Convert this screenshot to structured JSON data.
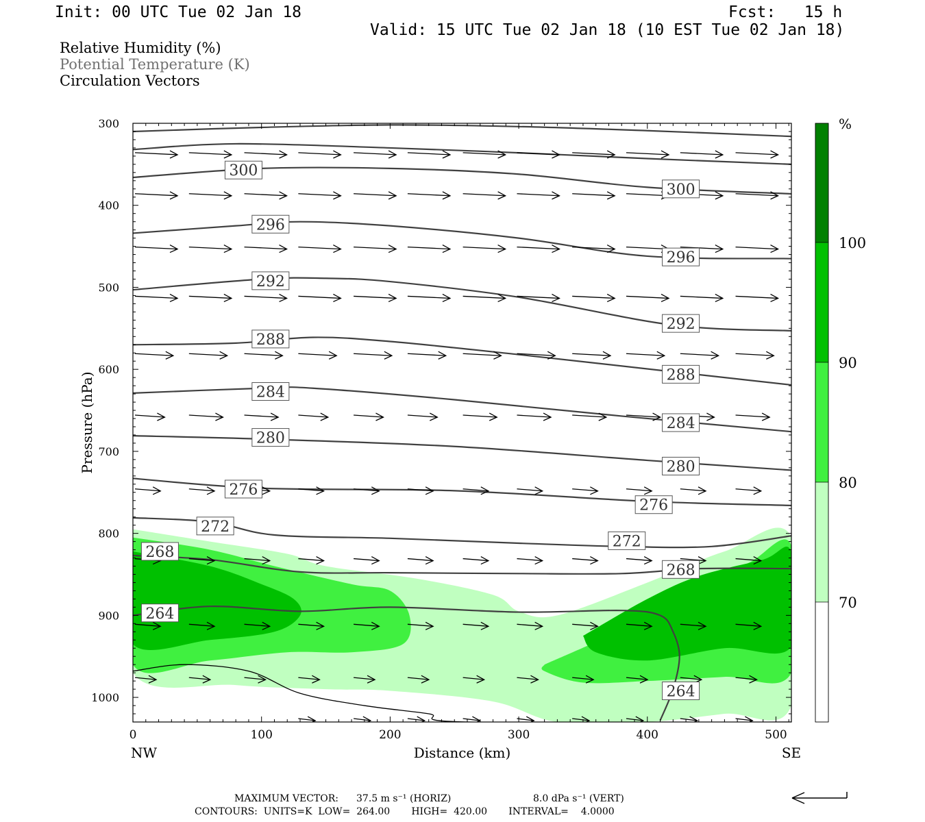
{
  "header": {
    "init": "Init: 00 UTC Tue 02 Jan 18",
    "fcst": "Fcst:   15 h",
    "valid": "Valid: 15 UTC Tue 02 Jan 18 (10 EST Tue 02 Jan 18)"
  },
  "fields": [
    {
      "label": "Relative Humidity (%)",
      "color": "#000000"
    },
    {
      "label": "Potential Temperature (K)",
      "color": "#707070"
    },
    {
      "label": "Circulation Vectors",
      "color": "#000000"
    }
  ],
  "footer": {
    "max_vector_label": "MAXIMUM VECTOR:",
    "horiz": "37.5 m s⁻¹ (HORIZ)",
    "vert": "8.0 dPa s⁻¹ (VERT)",
    "contours": "CONTOURS:  UNITS=K  LOW=  264.00       HIGH=  420.00       INTERVAL=    4.0000"
  },
  "colors": {
    "rh_70": "#c0ffc0",
    "rh_80": "#40f040",
    "rh_90": "#00c000",
    "rh_100": "#008000",
    "theta_line": "#404040",
    "axis": "#000000"
  },
  "chart_data": {
    "type": "contour",
    "xlabel": "Distance (km)",
    "ylabel": "Pressure (hPa)",
    "xlim": [
      0,
      512
    ],
    "ylim": [
      1030,
      300
    ],
    "xticks": [
      0,
      100,
      200,
      300,
      400,
      500
    ],
    "yticks": [
      300,
      400,
      500,
      600,
      700,
      800,
      900,
      1000
    ],
    "x_end_labels": {
      "left": "NW",
      "right": "SE"
    },
    "colorbar": {
      "unit": "%",
      "levels": [
        70,
        80,
        90,
        100
      ],
      "tick_labels": [
        "70",
        "80",
        "90",
        "100"
      ]
    },
    "theta_contours": [
      {
        "level": 300,
        "label": "300",
        "points": [
          [
            0,
            366
          ],
          [
            100,
            355
          ],
          [
            200,
            355
          ],
          [
            300,
            362
          ],
          [
            400,
            378
          ],
          [
            512,
            386
          ]
        ],
        "label_at": [
          [
            86,
            357
          ],
          [
            426,
            380
          ]
        ]
      },
      {
        "level": 296,
        "label": "296",
        "points": [
          [
            0,
            434
          ],
          [
            80,
            425
          ],
          [
            130,
            420
          ],
          [
            200,
            425
          ],
          [
            300,
            440
          ],
          [
            400,
            462
          ],
          [
            512,
            465
          ]
        ],
        "label_at": [
          [
            107,
            423
          ],
          [
            426,
            463
          ]
        ]
      },
      {
        "level": 292,
        "label": "292",
        "points": [
          [
            0,
            503
          ],
          [
            100,
            490
          ],
          [
            150,
            489
          ],
          [
            200,
            493
          ],
          [
            300,
            512
          ],
          [
            420,
            546
          ],
          [
            512,
            553
          ]
        ],
        "label_at": [
          [
            107,
            492
          ],
          [
            426,
            544
          ]
        ]
      },
      {
        "level": 288,
        "label": "288",
        "points": [
          [
            0,
            570
          ],
          [
            80,
            568
          ],
          [
            140,
            561
          ],
          [
            200,
            566
          ],
          [
            300,
            582
          ],
          [
            420,
            603
          ],
          [
            512,
            619
          ]
        ],
        "label_at": [
          [
            107,
            563
          ],
          [
            426,
            606
          ]
        ]
      },
      {
        "level": 284,
        "label": "284",
        "points": [
          [
            0,
            629
          ],
          [
            100,
            623
          ],
          [
            140,
            623
          ],
          [
            250,
            637
          ],
          [
            380,
            657
          ],
          [
            512,
            676
          ]
        ],
        "label_at": [
          [
            107,
            627
          ],
          [
            426,
            665
          ]
        ]
      },
      {
        "level": 280,
        "label": "280",
        "points": [
          [
            0,
            681
          ],
          [
            100,
            685
          ],
          [
            250,
            694
          ],
          [
            400,
            711
          ],
          [
            512,
            723
          ]
        ],
        "label_at": [
          [
            107,
            683
          ],
          [
            426,
            718
          ]
        ]
      },
      {
        "level": 276,
        "label": "276",
        "points": [
          [
            0,
            733
          ],
          [
            100,
            745
          ],
          [
            250,
            748
          ],
          [
            400,
            761
          ],
          [
            512,
            766
          ]
        ],
        "label_at": [
          [
            86,
            746
          ],
          [
            405,
            765
          ]
        ]
      },
      {
        "level": 272,
        "label": "272",
        "points": [
          [
            0,
            781
          ],
          [
            60,
            786
          ],
          [
            110,
            802
          ],
          [
            200,
            806
          ],
          [
            300,
            812
          ],
          [
            380,
            816
          ],
          [
            450,
            816
          ],
          [
            512,
            803
          ]
        ],
        "label_at": [
          [
            64,
            791
          ],
          [
            384,
            809
          ]
        ]
      },
      {
        "level": 268,
        "label": "268",
        "points": [
          [
            0,
            827
          ],
          [
            60,
            832
          ],
          [
            130,
            847
          ],
          [
            200,
            848
          ],
          [
            300,
            849
          ],
          [
            380,
            849
          ],
          [
            440,
            843
          ],
          [
            512,
            843
          ]
        ],
        "label_at": [
          [
            21,
            822
          ],
          [
            426,
            844
          ]
        ]
      },
      {
        "level": 264,
        "label": "264",
        "points": [
          [
            0,
            900
          ],
          [
            60,
            889
          ],
          [
            130,
            895
          ],
          [
            200,
            890
          ],
          [
            300,
            896
          ],
          [
            380,
            894
          ],
          [
            410,
            900
          ],
          [
            420,
            920
          ],
          [
            425,
            950
          ],
          [
            420,
            990
          ],
          [
            410,
            1028
          ]
        ],
        "label_at": [
          [
            21,
            897
          ],
          [
            426,
            992
          ]
        ]
      }
    ],
    "rh_regions": [
      {
        "level": 70,
        "points": [
          [
            0,
            795
          ],
          [
            60,
            810
          ],
          [
            120,
            825
          ],
          [
            150,
            840
          ],
          [
            220,
            855
          ],
          [
            280,
            875
          ],
          [
            300,
            895
          ],
          [
            330,
            900
          ],
          [
            400,
            860
          ],
          [
            460,
            822
          ],
          [
            512,
            805
          ],
          [
            512,
            1010
          ],
          [
            460,
            1020
          ],
          [
            400,
            1030
          ],
          [
            330,
            1030
          ],
          [
            280,
            1005
          ],
          [
            200,
            992
          ],
          [
            150,
            990
          ],
          [
            80,
            985
          ],
          [
            0,
            970
          ]
        ]
      },
      {
        "level": 80,
        "points": [
          [
            0,
            805
          ],
          [
            60,
            820
          ],
          [
            110,
            840
          ],
          [
            170,
            862
          ],
          [
            200,
            870
          ],
          [
            215,
            900
          ],
          [
            210,
            935
          ],
          [
            170,
            945
          ],
          [
            120,
            945
          ],
          [
            60,
            955
          ],
          [
            0,
            960
          ]
        ]
      },
      {
        "level": 80,
        "points": [
          [
            320,
            960
          ],
          [
            380,
            918
          ],
          [
            440,
            870
          ],
          [
            480,
            835
          ],
          [
            512,
            815
          ],
          [
            512,
            970
          ],
          [
            460,
            975
          ],
          [
            400,
            980
          ],
          [
            350,
            982
          ],
          [
            320,
            968
          ]
        ]
      },
      {
        "level": 90,
        "points": [
          [
            0,
            822
          ],
          [
            60,
            840
          ],
          [
            100,
            862
          ],
          [
            125,
            880
          ],
          [
            130,
            900
          ],
          [
            110,
            920
          ],
          [
            60,
            930
          ],
          [
            0,
            935
          ]
        ]
      },
      {
        "level": 90,
        "points": [
          [
            350,
            925
          ],
          [
            400,
            880
          ],
          [
            440,
            852
          ],
          [
            490,
            832
          ],
          [
            512,
            823
          ],
          [
            512,
            938
          ],
          [
            460,
            940
          ],
          [
            400,
            955
          ],
          [
            360,
            945
          ]
        ]
      }
    ],
    "vectors": [
      {
        "p": 335,
        "x": [
          0,
          42,
          85,
          127,
          170,
          212,
          255,
          297,
          340,
          382,
          424,
          467
        ],
        "u": [
          1,
          1,
          1,
          1,
          1,
          1,
          1,
          1,
          1,
          1,
          1,
          1
        ]
      },
      {
        "p": 385,
        "x": [
          0,
          42,
          85,
          127,
          170,
          212,
          255,
          297,
          340,
          382,
          424,
          467
        ],
        "u": [
          1,
          1,
          1,
          1,
          1,
          1,
          1,
          1,
          1,
          1,
          1,
          1
        ]
      },
      {
        "p": 450,
        "x": [
          0,
          42,
          85,
          127,
          170,
          212,
          255,
          297,
          340,
          382,
          424,
          467
        ],
        "u": [
          1,
          1,
          1,
          1,
          1,
          1,
          1,
          1,
          1,
          1,
          1,
          1
        ]
      },
      {
        "p": 510,
        "x": [
          0,
          42,
          85,
          127,
          170,
          212,
          255,
          297,
          340,
          382,
          424,
          467
        ],
        "u": [
          1,
          1,
          1,
          1,
          1,
          1,
          1,
          1,
          1,
          1,
          1,
          1
        ]
      },
      {
        "p": 580,
        "x": [
          0,
          42,
          85,
          127,
          170,
          212,
          255,
          297,
          340,
          382,
          424,
          467
        ],
        "u": [
          0.9,
          0.9,
          0.9,
          0.9,
          0.9,
          0.9,
          0.9,
          0.9,
          0.9,
          0.9,
          0.9,
          0.9
        ]
      },
      {
        "p": 655,
        "x": [
          0,
          42,
          85,
          127,
          170,
          212,
          255,
          297,
          340,
          382,
          424,
          467
        ],
        "u": [
          0.7,
          0.8,
          0.8,
          0.7,
          0.7,
          0.7,
          0.8,
          0.8,
          0.8,
          0.8,
          0.8,
          0.8
        ]
      },
      {
        "p": 745,
        "x": [
          0,
          42,
          85,
          127,
          170,
          212,
          255,
          297,
          340,
          382,
          424,
          467
        ],
        "u": [
          0.6,
          0.6,
          0.6,
          0.6,
          0.6,
          0.6,
          0.6,
          0.6,
          0.6,
          0.6,
          0.6,
          0.6
        ]
      },
      {
        "p": 830,
        "x": [
          0,
          42,
          85,
          127,
          170,
          212,
          255,
          297,
          340,
          382,
          424,
          467
        ],
        "u": [
          0.6,
          0.6,
          0.6,
          0.6,
          0.6,
          0.6,
          0.6,
          0.6,
          0.6,
          0.6,
          0.6,
          0.6
        ]
      },
      {
        "p": 910,
        "x": [
          0,
          42,
          85,
          127,
          170,
          212,
          255,
          297,
          340,
          382,
          424,
          467
        ],
        "u": [
          0.6,
          0.6,
          0.6,
          0.6,
          0.6,
          0.6,
          0.6,
          0.6,
          0.6,
          0.6,
          0.6,
          0.6
        ]
      },
      {
        "p": 975,
        "x": [
          0,
          42,
          85,
          127,
          170,
          212,
          255,
          297,
          340,
          382,
          424,
          467
        ],
        "u": [
          0.5,
          0.5,
          0.5,
          0.5,
          0.5,
          0.5,
          0.5,
          0.5,
          0.5,
          0.5,
          0.5,
          0.5
        ]
      },
      {
        "p": 1025,
        "x": [
          127,
          170,
          212,
          255,
          297,
          340,
          382,
          424,
          467
        ],
        "u": [
          0.4,
          0.4,
          0.4,
          0.4,
          0.4,
          0.4,
          0.4,
          0.4,
          0.4
        ]
      }
    ]
  }
}
